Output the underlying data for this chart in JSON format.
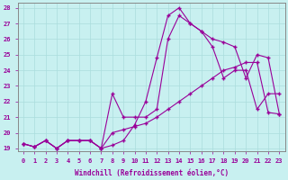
{
  "xlabel": "Windchill (Refroidissement éolien,°C)",
  "bg_color": "#c8f0f0",
  "line_color": "#990099",
  "grid_color": "#aadddd",
  "xlim_min": -0.5,
  "xlim_max": 23.5,
  "ylim_min": 18.8,
  "ylim_max": 28.3,
  "yticks": [
    19,
    20,
    21,
    22,
    23,
    24,
    25,
    26,
    27,
    28
  ],
  "xticks": [
    0,
    1,
    2,
    3,
    4,
    5,
    6,
    7,
    8,
    9,
    10,
    11,
    12,
    13,
    14,
    15,
    16,
    17,
    18,
    19,
    20,
    21,
    22,
    23
  ],
  "series": [
    [
      19.3,
      19.1,
      19.5,
      19.0,
      19.5,
      19.5,
      19.5,
      19.0,
      19.2,
      19.5,
      20.5,
      22.0,
      24.8,
      27.5,
      28.0,
      27.0,
      26.5,
      26.0,
      25.8,
      25.5,
      23.5,
      25.0,
      24.8,
      21.2
    ],
    [
      19.3,
      19.1,
      19.5,
      19.0,
      19.5,
      19.5,
      19.5,
      19.0,
      22.5,
      21.0,
      21.0,
      21.0,
      21.5,
      26.0,
      27.5,
      27.0,
      26.5,
      25.5,
      23.5,
      24.0,
      24.0,
      21.5,
      22.5,
      22.5
    ],
    [
      19.3,
      19.1,
      19.5,
      19.0,
      19.5,
      19.5,
      19.5,
      19.0,
      20.0,
      20.2,
      20.4,
      20.6,
      21.0,
      21.5,
      22.0,
      22.5,
      23.0,
      23.5,
      24.0,
      24.2,
      24.5,
      24.5,
      21.3,
      21.2
    ]
  ]
}
